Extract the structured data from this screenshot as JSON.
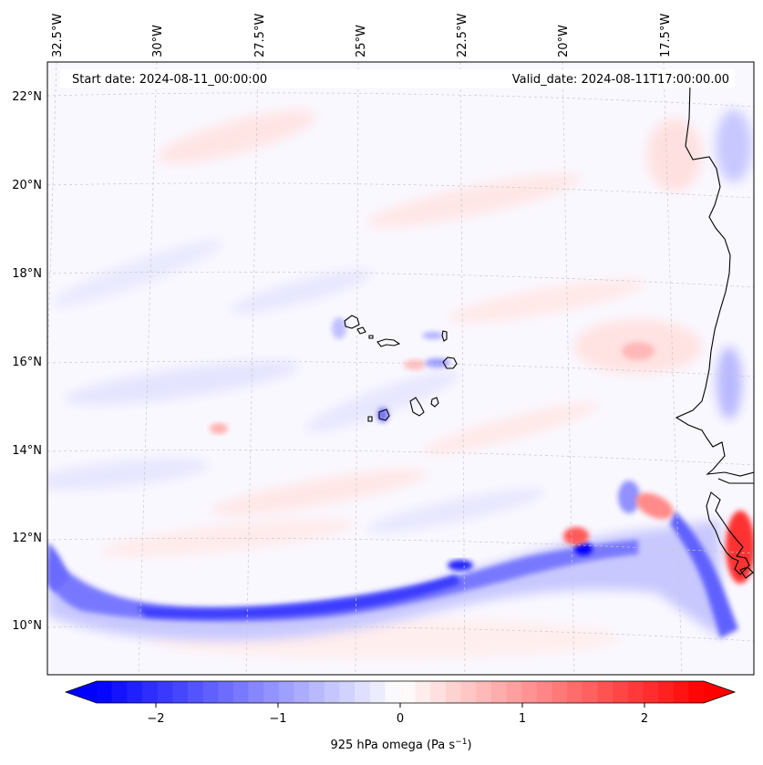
{
  "map": {
    "start_date_label": "Start date: 2024-08-11_00:00:00",
    "valid_date_label": "Valid_date: 2024-08-11T17:00:00.00",
    "lon_ticks": [
      "32.5°W",
      "30°W",
      "27.5°W",
      "25°W",
      "22.5°W",
      "20°W",
      "17.5°W"
    ],
    "lat_ticks": [
      "22°N",
      "20°N",
      "18°N",
      "16°N",
      "14°N",
      "12°N",
      "10°N"
    ],
    "field": "925 hPa omega",
    "region": "Cabo Verde and West African coast"
  },
  "colorbar": {
    "label_prefix": "925 hPa omega (Pa s",
    "label_exp": "−1",
    "label_suffix": ")",
    "ticks": [
      "−2",
      "−1",
      "0",
      "1",
      "2"
    ],
    "vmin": -2.6,
    "vmax": 2.6,
    "low_color": "#0000ff",
    "mid_color": "#ffffff",
    "high_color": "#ff0000"
  }
}
